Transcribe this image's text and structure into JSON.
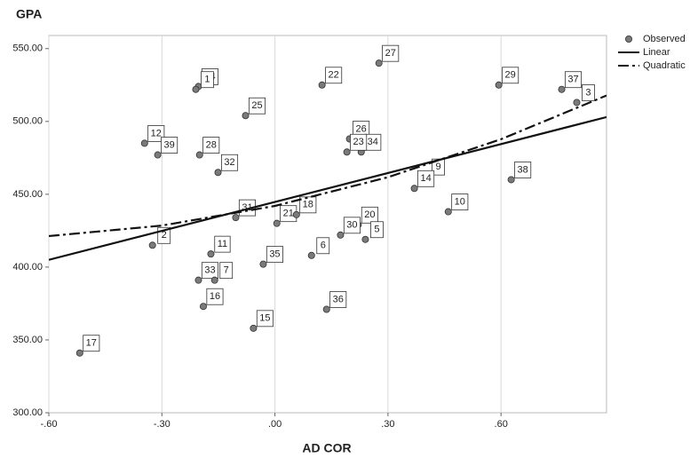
{
  "chart_data": {
    "type": "scatter",
    "x_label": "AD COR",
    "y_label": "GPA",
    "xlim": [
      -0.6,
      0.88
    ],
    "ylim": [
      300,
      559
    ],
    "xticks": [
      {
        "value": -0.6,
        "label": "-.60"
      },
      {
        "value": -0.3,
        "label": "-.30"
      },
      {
        "value": 0,
        "label": ".00"
      },
      {
        "value": 0.3,
        "label": ".30"
      },
      {
        "value": 0.6,
        "label": ".60"
      }
    ],
    "yticks": [
      {
        "value": 300,
        "label": "300.00"
      },
      {
        "value": 350,
        "label": "350.00"
      },
      {
        "value": 400,
        "label": "400.00"
      },
      {
        "value": 450,
        "label": "450.00"
      },
      {
        "value": 500,
        "label": "500.00"
      },
      {
        "value": 550,
        "label": "550.00"
      }
    ],
    "grid": "x",
    "legend": "top-right",
    "series": [
      {
        "name": "Observed",
        "color": "#7a7a7a",
        "style": "points",
        "point_labels": [
          "17",
          "24",
          "1",
          "12",
          "39",
          "28",
          "32",
          "25",
          "2",
          "11",
          "33",
          "7",
          "16",
          "31",
          "35",
          "15",
          "21",
          "18",
          "6",
          "36",
          "22",
          "26",
          "34",
          "23",
          "20",
          "30",
          "5",
          "27",
          "9",
          "14",
          "10",
          "29",
          "37",
          "3",
          "38"
        ],
        "x": [
          -0.518,
          -0.203,
          -0.21,
          -0.346,
          -0.311,
          -0.2,
          -0.151,
          -0.078,
          -0.325,
          -0.17,
          -0.203,
          -0.16,
          -0.19,
          -0.104,
          -0.031,
          -0.057,
          0.005,
          0.057,
          0.097,
          0.137,
          0.125,
          0.198,
          0.229,
          0.191,
          0.221,
          0.174,
          0.24,
          0.276,
          0.403,
          0.37,
          0.46,
          0.594,
          0.761,
          0.801,
          0.627
        ],
        "values": [
          341,
          524,
          522,
          485,
          477,
          477,
          465,
          504,
          415,
          409,
          391,
          391,
          373,
          434,
          402,
          358,
          430,
          436,
          408,
          371,
          525,
          488,
          479,
          479,
          429,
          422,
          419,
          540,
          462,
          454,
          438,
          525,
          522,
          513,
          460
        ]
      },
      {
        "name": "Linear",
        "color": "#111111",
        "style": "solid",
        "x": [
          -0.6,
          0.88
        ],
        "values": [
          405,
          503
        ]
      },
      {
        "name": "Quadratic",
        "color": "#111111",
        "style": "dashdot",
        "x": [
          -0.6,
          -0.3,
          0,
          0.3,
          0.6,
          0.88
        ],
        "values": [
          421.3,
          428.5,
          442,
          461.7,
          487.8,
          517.8
        ]
      }
    ]
  }
}
